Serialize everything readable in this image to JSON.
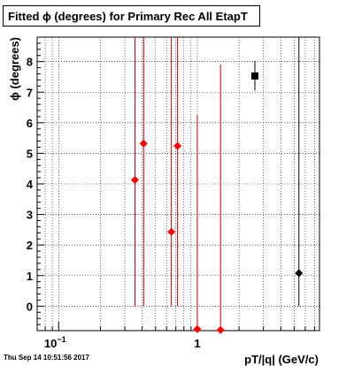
{
  "title": "Fitted ϕ (degrees) for Primary Rec All EtapT",
  "timestamp": "Thu Sep 14 10:51:56 2017",
  "colors": {
    "red": "#ff0000",
    "errorbar_red": "#cc0000",
    "black": "#000000"
  },
  "chart_data": {
    "type": "scatter",
    "title": "Fitted ϕ (degrees) for Primary Rec All EtapT",
    "xlabel": "pT/|q| (GeV/c)",
    "ylabel": "ϕ (degrees)",
    "xscale": "log",
    "xlim": [
      0.07,
      7.6
    ],
    "ylim": [
      -0.8,
      8.8
    ],
    "grid": true,
    "x_ticks": [
      {
        "value": 0.1,
        "base": "10",
        "exp": "−1"
      },
      {
        "value": 1,
        "base": "1",
        "exp": ""
      }
    ],
    "y_ticks": [
      "0",
      "1",
      "2",
      "3",
      "4",
      "5",
      "6",
      "7",
      "8"
    ],
    "series": [
      {
        "marker": "diamond",
        "color": "#ff0000",
        "points": [
          {
            "x": 0.355,
            "y": 4.13,
            "ylow": 0,
            "yhigh": 8.8
          },
          {
            "x": 0.41,
            "y": 5.32,
            "ylow": 0,
            "yhigh": 8.8
          },
          {
            "x": 0.65,
            "y": 2.43,
            "ylow": 0,
            "yhigh": 8.8
          },
          {
            "x": 0.72,
            "y": 5.24,
            "ylow": 0,
            "yhigh": 8.8
          },
          {
            "x": 1.0,
            "y": -0.75,
            "ylow": -0.8,
            "yhigh": 6.25
          },
          {
            "x": 1.47,
            "y": -0.78,
            "ylow": -0.8,
            "yhigh": 7.9
          }
        ]
      },
      {
        "marker": "square",
        "color": "#000000",
        "points": [
          {
            "x": 2.6,
            "y": 7.53,
            "ylow": 7.05,
            "yhigh": 8.02
          }
        ]
      },
      {
        "marker": "diamond",
        "color": "#000000",
        "points": [
          {
            "x": 5.4,
            "y": 1.08,
            "ylow": 0,
            "yhigh": 8.8
          }
        ]
      }
    ]
  }
}
